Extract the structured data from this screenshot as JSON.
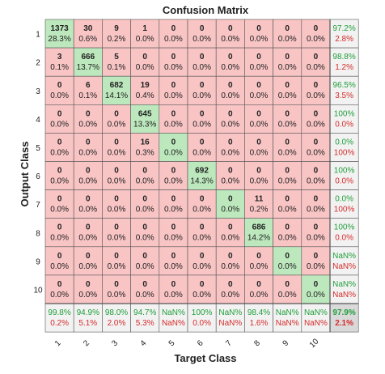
{
  "chart_data": {
    "type": "heatmap",
    "title": "Confusion Matrix",
    "xlabel": "Target Class",
    "ylabel": "Output Class",
    "row_labels": [
      "1",
      "2",
      "3",
      "4",
      "5",
      "6",
      "7",
      "8",
      "9",
      "10"
    ],
    "col_labels": [
      "1",
      "2",
      "3",
      "4",
      "5",
      "6",
      "7",
      "8",
      "9",
      "10"
    ],
    "counts": [
      [
        1373,
        30,
        9,
        1,
        0,
        0,
        0,
        0,
        0,
        0
      ],
      [
        3,
        666,
        5,
        0,
        0,
        0,
        0,
        0,
        0,
        0
      ],
      [
        0,
        6,
        682,
        19,
        0,
        0,
        0,
        0,
        0,
        0
      ],
      [
        0,
        0,
        0,
        645,
        0,
        0,
        0,
        0,
        0,
        0
      ],
      [
        0,
        0,
        0,
        16,
        0,
        0,
        0,
        0,
        0,
        0
      ],
      [
        0,
        0,
        0,
        0,
        0,
        692,
        0,
        0,
        0,
        0
      ],
      [
        0,
        0,
        0,
        0,
        0,
        0,
        0,
        11,
        0,
        0
      ],
      [
        0,
        0,
        0,
        0,
        0,
        0,
        0,
        686,
        0,
        0
      ],
      [
        0,
        0,
        0,
        0,
        0,
        0,
        0,
        0,
        0,
        0
      ],
      [
        0,
        0,
        0,
        0,
        0,
        0,
        0,
        0,
        0,
        0
      ]
    ],
    "percents": [
      [
        "28.3%",
        "0.6%",
        "0.2%",
        "0.0%",
        "0.0%",
        "0.0%",
        "0.0%",
        "0.0%",
        "0.0%",
        "0.0%"
      ],
      [
        "0.1%",
        "13.7%",
        "0.1%",
        "0.0%",
        "0.0%",
        "0.0%",
        "0.0%",
        "0.0%",
        "0.0%",
        "0.0%"
      ],
      [
        "0.0%",
        "0.1%",
        "14.1%",
        "0.4%",
        "0.0%",
        "0.0%",
        "0.0%",
        "0.0%",
        "0.0%",
        "0.0%"
      ],
      [
        "0.0%",
        "0.0%",
        "0.0%",
        "13.3%",
        "0.0%",
        "0.0%",
        "0.0%",
        "0.0%",
        "0.0%",
        "0.0%"
      ],
      [
        "0.0%",
        "0.0%",
        "0.0%",
        "0.3%",
        "0.0%",
        "0.0%",
        "0.0%",
        "0.0%",
        "0.0%",
        "0.0%"
      ],
      [
        "0.0%",
        "0.0%",
        "0.0%",
        "0.0%",
        "0.0%",
        "14.3%",
        "0.0%",
        "0.0%",
        "0.0%",
        "0.0%"
      ],
      [
        "0.0%",
        "0.0%",
        "0.0%",
        "0.0%",
        "0.0%",
        "0.0%",
        "0.0%",
        "0.2%",
        "0.0%",
        "0.0%"
      ],
      [
        "0.0%",
        "0.0%",
        "0.0%",
        "0.0%",
        "0.0%",
        "0.0%",
        "0.0%",
        "14.2%",
        "0.0%",
        "0.0%"
      ],
      [
        "0.0%",
        "0.0%",
        "0.0%",
        "0.0%",
        "0.0%",
        "0.0%",
        "0.0%",
        "0.0%",
        "0.0%",
        "0.0%"
      ],
      [
        "0.0%",
        "0.0%",
        "0.0%",
        "0.0%",
        "0.0%",
        "0.0%",
        "0.0%",
        "0.0%",
        "0.0%",
        "0.0%"
      ]
    ],
    "row_summary": [
      [
        "97.2%",
        "2.8%"
      ],
      [
        "98.8%",
        "1.2%"
      ],
      [
        "96.5%",
        "3.5%"
      ],
      [
        "100%",
        "0.0%"
      ],
      [
        "0.0%",
        "100%"
      ],
      [
        "100%",
        "0.0%"
      ],
      [
        "0.0%",
        "100%"
      ],
      [
        "100%",
        "0.0%"
      ],
      [
        "NaN%",
        "NaN%"
      ],
      [
        "NaN%",
        "NaN%"
      ]
    ],
    "col_summary": [
      [
        "99.8%",
        "0.2%"
      ],
      [
        "94.9%",
        "5.1%"
      ],
      [
        "98.0%",
        "2.0%"
      ],
      [
        "94.7%",
        "5.3%"
      ],
      [
        "NaN%",
        "NaN%"
      ],
      [
        "100%",
        "0.0%"
      ],
      [
        "NaN%",
        "NaN%"
      ],
      [
        "98.4%",
        "1.6%"
      ],
      [
        "NaN%",
        "NaN%"
      ],
      [
        "NaN%",
        "NaN%"
      ]
    ],
    "overall": [
      "97.9%",
      "2.1%"
    ]
  },
  "colors": {
    "correct_cell": "#bde8bd",
    "incorrect_cell": "#f8c4c4",
    "summary_cell": "#f2f2f2",
    "overall_cell": "#d9d9d9",
    "correct_text": "#1f9f3a",
    "incorrect_text": "#d62c2c",
    "grid_line": "#555555",
    "text": "#222222"
  }
}
